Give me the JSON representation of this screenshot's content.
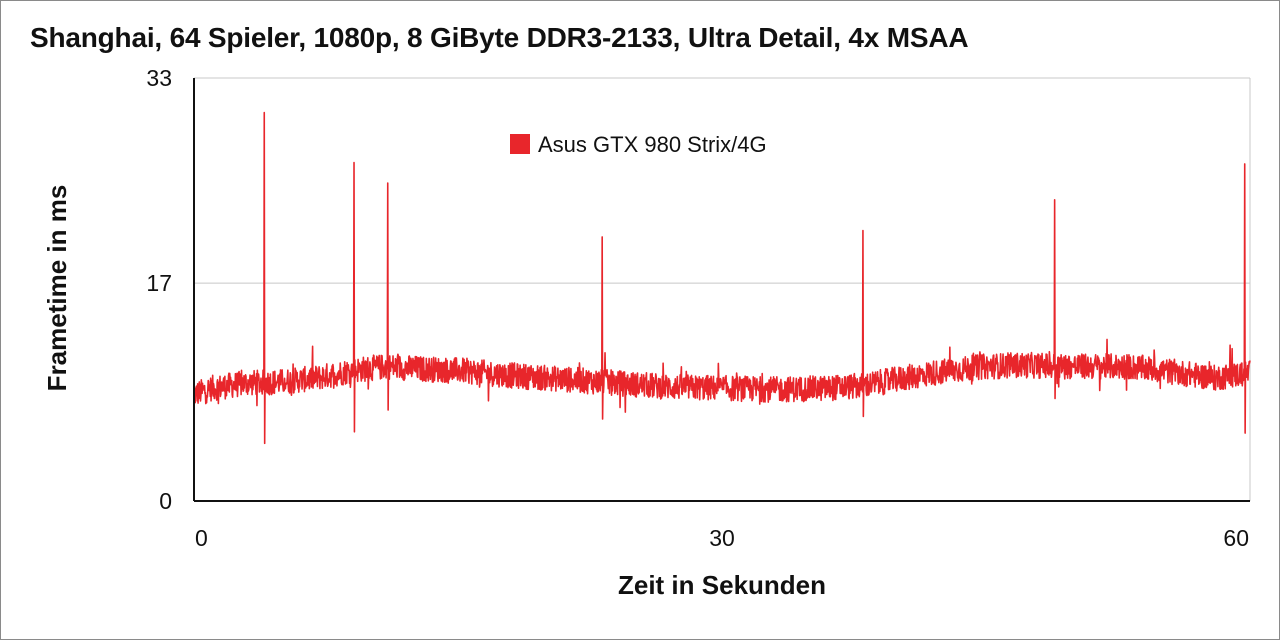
{
  "chart_data": {
    "type": "line",
    "title": "Shanghai, 64 Spieler, 1080p, 8 GiByte DDR3-2133, Ultra Detail, 4x MSAA",
    "xlabel": "Zeit in Sekunden",
    "ylabel": "Frametime in ms",
    "xlim": [
      0,
      60
    ],
    "ylim": [
      0,
      33
    ],
    "xticks": [
      0,
      30,
      60
    ],
    "yticks": [
      0,
      17,
      33
    ],
    "grid": "horizontal",
    "legend_position": "top-center",
    "series": [
      {
        "name": "Asus GTX 980 Strix/4G",
        "color": "#e8262b",
        "baseline": {
          "x": [
            0,
            1,
            3,
            5,
            7,
            9,
            11,
            13,
            15,
            18,
            21,
            24,
            27,
            30,
            33,
            36,
            38,
            40,
            42,
            45,
            47,
            50,
            53,
            55,
            57,
            58,
            60
          ],
          "y": [
            8.3,
            8.8,
            9.2,
            9.3,
            9.6,
            10.2,
            10.5,
            10.3,
            10.2,
            9.8,
            9.5,
            9.2,
            8.9,
            8.8,
            8.7,
            8.8,
            9.0,
            9.5,
            10.0,
            10.5,
            10.6,
            10.5,
            10.5,
            10.2,
            9.8,
            9.6,
            10.0
          ]
        },
        "noise_amplitude": 1.0,
        "spikes": [
          {
            "x": 4.0,
            "peak": 30.3,
            "dip": 4.5
          },
          {
            "x": 9.1,
            "peak": 26.4,
            "dip": 5.4
          },
          {
            "x": 11.0,
            "peak": 24.8,
            "dip": 7.1
          },
          {
            "x": 23.2,
            "peak": 20.6,
            "dip": 6.4
          },
          {
            "x": 38.0,
            "peak": 21.1,
            "dip": 6.6
          },
          {
            "x": 48.9,
            "peak": 23.5,
            "dip": 8.0
          },
          {
            "x": 59.7,
            "peak": 26.3,
            "dip": 5.3
          }
        ]
      }
    ]
  }
}
